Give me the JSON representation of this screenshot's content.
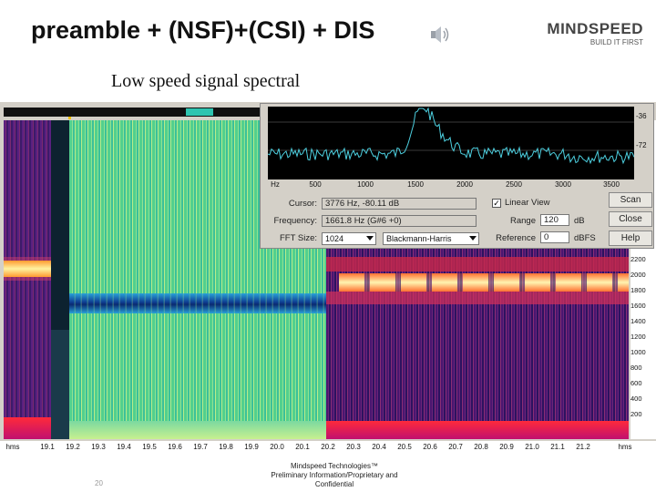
{
  "slide": {
    "title": "preamble + (NSF)+(CSI) + DIS",
    "subtitle": "Low speed signal spectral",
    "logo_text": "MINDSPEED",
    "logo_tagline": "BUILD IT FIRST",
    "page_number": "20",
    "footer_line1": "Mindspeed Technologies™",
    "footer_line2": "Preliminary Information/Proprietary and",
    "footer_line3": "Confidential"
  },
  "spectrogram": {
    "y_ticks": [
      "2200",
      "2000",
      "1800",
      "1600",
      "1400",
      "1200",
      "1000",
      "800",
      "600",
      "400",
      "200"
    ],
    "x_ticks": [
      "hms",
      "19.1",
      "19.2",
      "19.3",
      "19.4",
      "19.5",
      "19.6",
      "19.7",
      "19.8",
      "19.9",
      "20.0",
      "20.1",
      "20.2",
      "20.3",
      "20.4",
      "20.5",
      "20.6",
      "20.7",
      "20.8",
      "20.9",
      "21.0",
      "21.1",
      "21.2",
      "hms"
    ]
  },
  "fft_panel": {
    "db_ticks": [
      "-36",
      "-72"
    ],
    "hz_ticks": [
      "Hz",
      "500",
      "1000",
      "1500",
      "2000",
      "2500",
      "3000",
      "3500"
    ],
    "cursor_label": "Cursor:",
    "cursor_value": "3776 Hz, -80.11 dB",
    "frequency_label": "Frequency:",
    "frequency_value": "1661.8 Hz (G#6 +0)",
    "fft_size_label": "FFT Size:",
    "fft_size_value": "1024",
    "window_value": "Blackmann-Harris",
    "linear_view_label": "Linear View",
    "linear_view_checked": "✓",
    "range_label": "Range",
    "range_value": "120",
    "range_unit": "dB",
    "reference_label": "Reference",
    "reference_value": "0",
    "reference_unit": "dBFS",
    "scan_button": "Scan",
    "close_button": "Close",
    "help_button": "Help",
    "trace_color": "#4dd0e0"
  }
}
